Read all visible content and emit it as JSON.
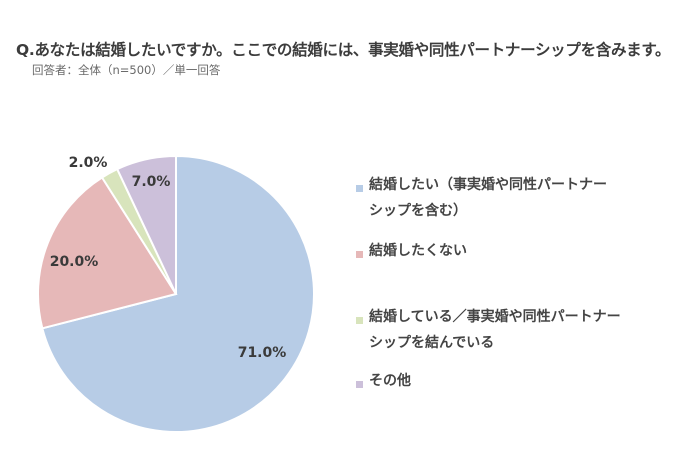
{
  "header": {
    "title": "Q.あなたは結婚したいですか。ここでの結婚には、事実婚や同性パートナーシップを含みます。",
    "subtitle": "回答者：全体（n=500）／単一回答"
  },
  "chart_data": {
    "type": "pie",
    "title": "Q.あなたは結婚したいですか。ここでの結婚には、事実婚や同性パートナーシップを含みます。",
    "subtitle": "回答者：全体（n=500）／単一回答",
    "start": "12 o'clock",
    "direction": "clockwise",
    "legend_position": "right",
    "slices": [
      {
        "label": "結婚したい（事実婚や同性パートナーシップを含む）",
        "value": 71.0,
        "display": "71.0%",
        "color": "#b7cce6"
      },
      {
        "label": "結婚したくない",
        "value": 20.0,
        "display": "20.0%",
        "color": "#e6b8b8"
      },
      {
        "label": "結婚している／事実婚や同性パートナーシップを結んでいる",
        "value": 2.0,
        "display": "2.0%",
        "color": "#d8e4bc"
      },
      {
        "label": "その他",
        "value": 7.0,
        "display": "7.0%",
        "color": "#ccc0da"
      }
    ]
  },
  "legend": {
    "items": [
      {
        "lines": [
          "結婚したい（事実婚や同性パートナー",
          "シップを含む）"
        ],
        "color": "#b7cce6"
      },
      {
        "lines": [
          "結婚したくない"
        ],
        "color": "#e6b8b8"
      },
      {
        "lines": [
          "結婚している／事実婚や同性パートナー",
          "シップを結んでいる"
        ],
        "color": "#d8e4bc"
      },
      {
        "lines": [
          "その他"
        ],
        "color": "#ccc0da"
      }
    ]
  }
}
